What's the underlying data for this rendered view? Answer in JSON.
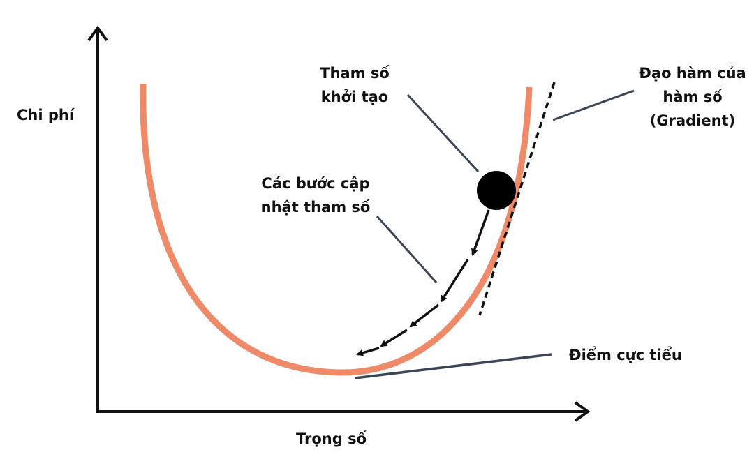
{
  "diagram": {
    "y_axis_label": "Chi phí",
    "x_axis_label": "Trọng số",
    "annotations": {
      "initial_param": [
        "Tham số",
        "khởi tạo"
      ],
      "gradient": [
        "Đạo hàm của",
        "hàm số",
        "(Gradient)"
      ],
      "update_steps": [
        "Các bước cập",
        "nhật tham số"
      ],
      "minimum": "Điểm cực tiểu"
    },
    "colors": {
      "curve": "#EE8A68",
      "axes": "#111111",
      "pointer_lines": "#3A4556",
      "ball": "#000000",
      "text": "#111111"
    }
  }
}
